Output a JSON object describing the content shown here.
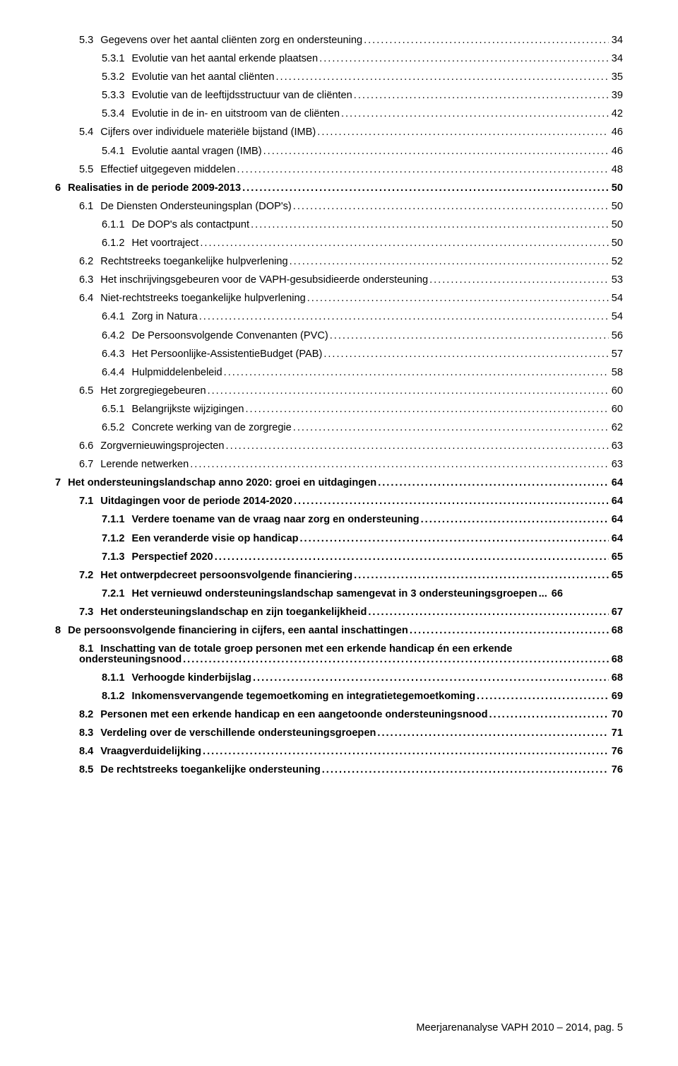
{
  "footer": "Meerjarenanalyse VAPH 2010 – 2014, pag. 5",
  "entries": [
    {
      "lvl": "lvl-2",
      "num": "5.3",
      "text": "Gegevens over het aantal cliënten zorg en ondersteuning",
      "page": "34"
    },
    {
      "lvl": "lvl-3",
      "num": "5.3.1",
      "text": "Evolutie van het aantal erkende plaatsen",
      "page": "34"
    },
    {
      "lvl": "lvl-3",
      "num": "5.3.2",
      "text": "Evolutie van het aantal cliënten",
      "page": "35"
    },
    {
      "lvl": "lvl-3",
      "num": "5.3.3",
      "text": "Evolutie van de leeftijdsstructuur van de cliënten",
      "page": "39"
    },
    {
      "lvl": "lvl-3",
      "num": "5.3.4",
      "text": "Evolutie in de in- en uitstroom van de cliënten",
      "page": "42"
    },
    {
      "lvl": "lvl-2",
      "num": "5.4",
      "text": "Cijfers over individuele materiële bijstand (IMB)",
      "page": "46"
    },
    {
      "lvl": "lvl-3",
      "num": "5.4.1",
      "text": "Evolutie aantal vragen (IMB)",
      "page": "46"
    },
    {
      "lvl": "lvl-2",
      "num": "5.5",
      "text": "Effectief uitgegeven middelen",
      "page": "48"
    },
    {
      "lvl": "lvl-1",
      "num": "6",
      "text": "Realisaties in de periode 2009-2013",
      "page": "50"
    },
    {
      "lvl": "lvl-2",
      "num": "6.1",
      "text": "De Diensten Ondersteuningsplan (DOP's)",
      "page": "50"
    },
    {
      "lvl": "lvl-3",
      "num": "6.1.1",
      "text": "De DOP's als contactpunt",
      "page": "50"
    },
    {
      "lvl": "lvl-3",
      "num": "6.1.2",
      "text": "Het voortraject",
      "page": "50"
    },
    {
      "lvl": "lvl-2",
      "num": "6.2",
      "text": "Rechtstreeks toegankelijke hulpverlening",
      "page": "52"
    },
    {
      "lvl": "lvl-2",
      "num": "6.3",
      "text": "Het inschrijvingsgebeuren voor de VAPH-gesubsidieerde ondersteuning",
      "page": "53"
    },
    {
      "lvl": "lvl-2",
      "num": "6.4",
      "text": "Niet-rechtstreeks toegankelijke hulpverlening",
      "page": "54"
    },
    {
      "lvl": "lvl-3",
      "num": "6.4.1",
      "text": "Zorg in Natura",
      "page": "54"
    },
    {
      "lvl": "lvl-3",
      "num": "6.4.2",
      "text": "De Persoonsvolgende Convenanten (PVC)",
      "page": "56"
    },
    {
      "lvl": "lvl-3",
      "num": "6.4.3",
      "text": "Het Persoonlijke-AssistentieBudget (PAB)",
      "page": "57"
    },
    {
      "lvl": "lvl-3",
      "num": "6.4.4",
      "text": "Hulpmiddelenbeleid",
      "page": "58"
    },
    {
      "lvl": "lvl-2",
      "num": "6.5",
      "text": "Het zorgregiegebeuren",
      "page": "60"
    },
    {
      "lvl": "lvl-3",
      "num": "6.5.1",
      "text": "Belangrijkste wijzigingen",
      "page": "60"
    },
    {
      "lvl": "lvl-3",
      "num": "6.5.2",
      "text": "Concrete werking van de zorgregie",
      "page": "62"
    },
    {
      "lvl": "lvl-2",
      "num": "6.6",
      "text": "Zorgvernieuwingsprojecten",
      "page": "63"
    },
    {
      "lvl": "lvl-2",
      "num": "6.7",
      "text": "Lerende netwerken",
      "page": "63"
    },
    {
      "lvl": "lvl-1",
      "num": "7",
      "text": "Het ondersteuningslandschap anno 2020: groei en uitdagingen",
      "page": "64"
    },
    {
      "lvl": "lvl-2b",
      "num": "7.1",
      "text": "Uitdagingen voor de periode 2014-2020",
      "page": "64"
    },
    {
      "lvl": "lvl-3b",
      "num": "7.1.1",
      "text": "Verdere toename van de vraag naar zorg en ondersteuning",
      "page": "64"
    },
    {
      "lvl": "lvl-3b",
      "num": "7.1.2",
      "text": "Een veranderde visie op handicap",
      "page": "64"
    },
    {
      "lvl": "lvl-3b",
      "num": "7.1.3",
      "text": "Perspectief 2020",
      "page": "65"
    },
    {
      "lvl": "lvl-2b",
      "num": "7.2",
      "text": "Het ontwerpdecreet persoonsvolgende financiering",
      "page": "65"
    },
    {
      "lvl": "lvl-3b",
      "num": "7.2.1",
      "text": "Het vernieuwd ondersteuningslandschap samengevat in 3 ondersteuningsgroepen",
      "page": "66",
      "no_leader": true
    },
    {
      "lvl": "lvl-2b",
      "num": "7.3",
      "text": "Het ondersteuningslandschap en zijn toegankelijkheid",
      "page": "67"
    },
    {
      "lvl": "lvl-1",
      "num": "8",
      "text": "De persoonsvolgende financiering in cijfers, een aantal inschattingen",
      "page": "68"
    },
    {
      "lvl": "lvl-2b",
      "num": "8.1",
      "text_top": "Inschatting van de totale groep personen met een erkende handicap én een erkende",
      "text_bottom": "ondersteuningsnood",
      "page": "68",
      "hang": true
    },
    {
      "lvl": "lvl-3b",
      "num": "8.1.1",
      "text": "Verhoogde kinderbijslag",
      "page": "68"
    },
    {
      "lvl": "lvl-3b",
      "num": "8.1.2",
      "text": "Inkomensvervangende tegemoetkoming en integratietegemoetkoming",
      "page": "69"
    },
    {
      "lvl": "lvl-2b",
      "num": "8.2",
      "text": "Personen met een erkende handicap en een aangetoonde ondersteuningsnood",
      "page": "70"
    },
    {
      "lvl": "lvl-2b",
      "num": "8.3",
      "text": "Verdeling over de verschillende ondersteuningsgroepen",
      "page": "71"
    },
    {
      "lvl": "lvl-2b",
      "num": "8.4",
      "text": "Vraagverduidelijking",
      "page": "76"
    },
    {
      "lvl": "lvl-2b",
      "num": "8.5",
      "text": "De rechtstreeks toegankelijke ondersteuning",
      "page": "76"
    }
  ]
}
